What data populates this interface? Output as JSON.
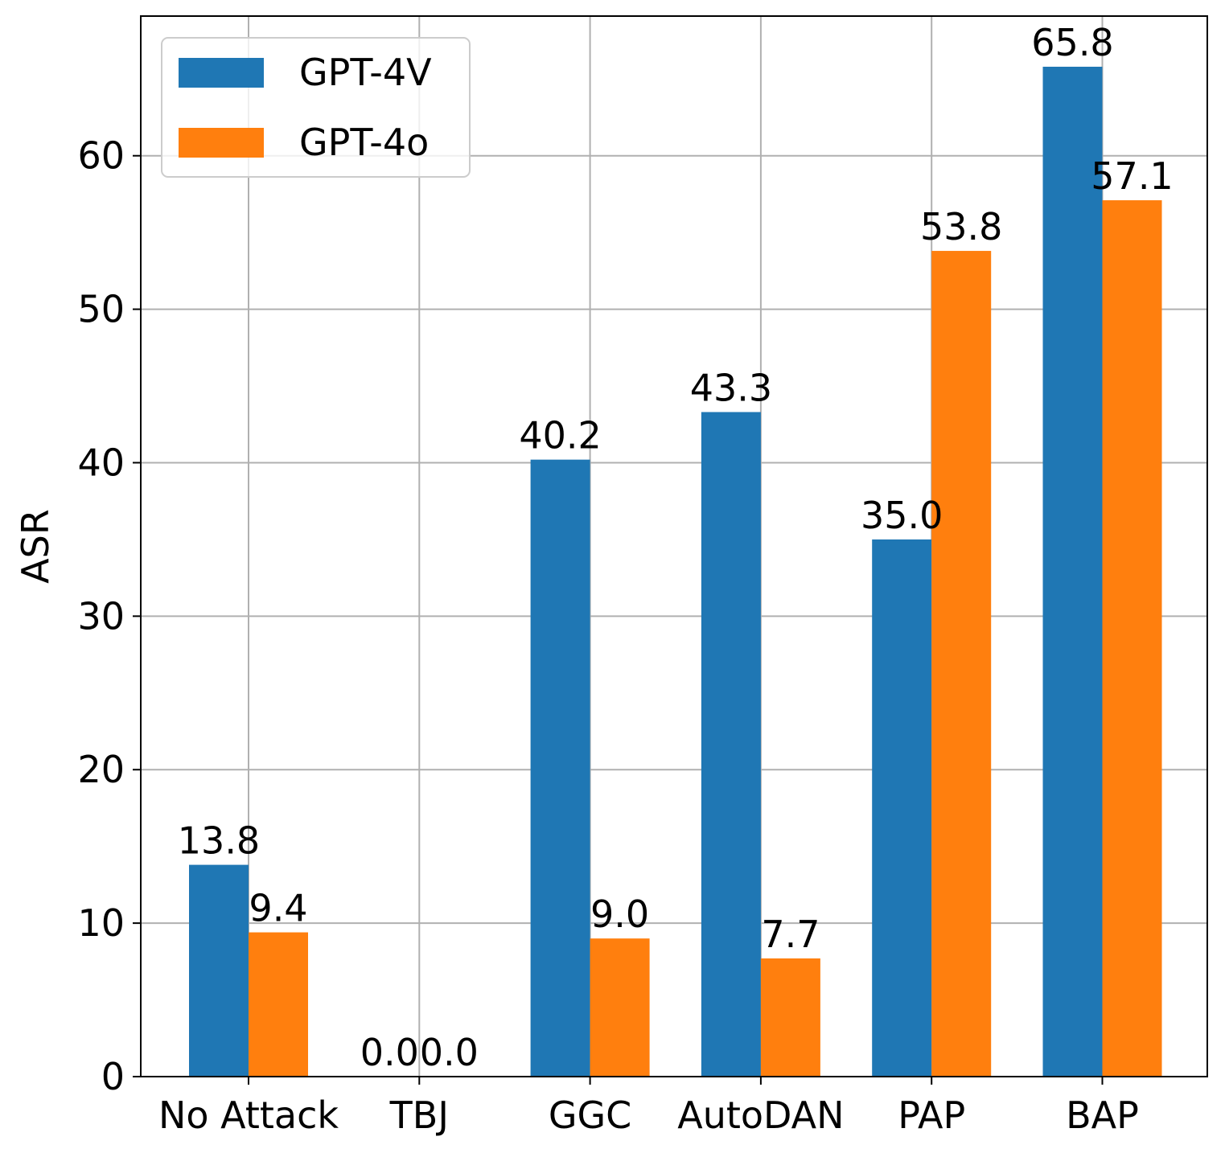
{
  "chart_data": {
    "type": "bar",
    "categories": [
      "No Attack",
      "TBJ",
      "GGC",
      "AutoDAN",
      "PAP",
      "BAP"
    ],
    "series": [
      {
        "name": "GPT-4V",
        "color": "#1f77b4",
        "values": [
          13.8,
          0.0,
          40.2,
          43.3,
          35.0,
          65.8
        ],
        "labels": [
          "13.8",
          "0.0",
          "40.2",
          "43.3",
          "35.0",
          "65.8"
        ]
      },
      {
        "name": "GPT-4o",
        "color": "#ff7f0e",
        "values": [
          9.4,
          0.0,
          9.0,
          7.7,
          53.8,
          57.1
        ],
        "labels": [
          "9.4",
          "0.0",
          "9.0",
          "7.7",
          "53.8",
          "57.1"
        ]
      }
    ],
    "xlabel": "",
    "ylabel": "ASR",
    "ylim": [
      0,
      69.1
    ],
    "yticks": [
      0,
      10,
      20,
      30,
      40,
      50,
      60
    ],
    "ytick_labels": [
      "0",
      "10",
      "20",
      "30",
      "40",
      "50",
      "60"
    ],
    "grid": true,
    "legend_position": "top-left"
  }
}
